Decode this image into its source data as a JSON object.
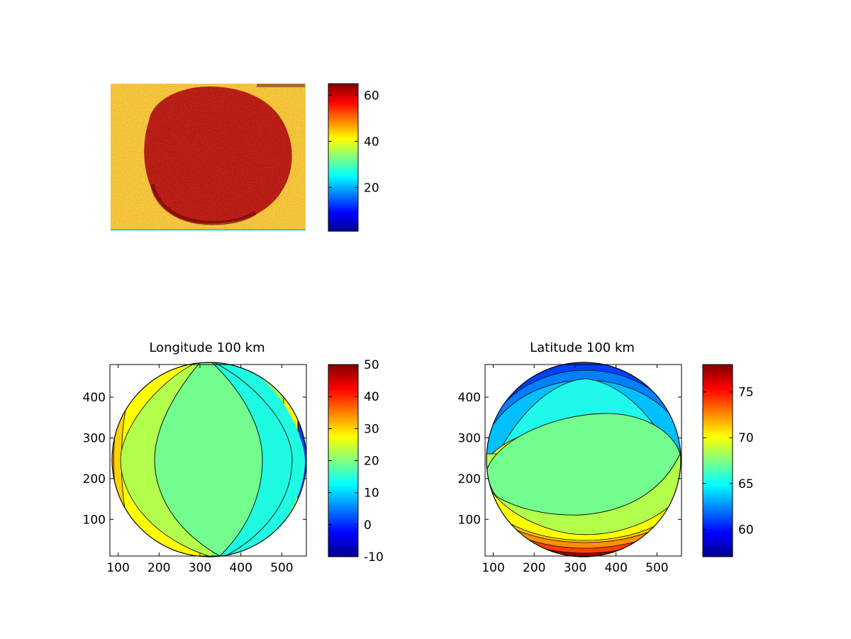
{
  "figure": {
    "colormap": "jet",
    "colormap_stops": [
      "#00008f",
      "#0000ff",
      "#0080ff",
      "#00ffff",
      "#80ff80",
      "#ffff00",
      "#ff8000",
      "#ff0000",
      "#800000"
    ]
  },
  "chart_data": [
    {
      "type": "heatmap",
      "title": "",
      "description_colors": {
        "background": "#f2d43a",
        "disk": "#a3140f"
      },
      "colorbar": {
        "range": [
          1,
          65
        ],
        "ticks": [
          20,
          40,
          60
        ]
      }
    },
    {
      "type": "contour",
      "title": "Longitude 100 km",
      "xlim": [
        80,
        560
      ],
      "ylim": [
        10,
        480
      ],
      "xticks": [
        100,
        200,
        300,
        400,
        500
      ],
      "yticks": [
        100,
        200,
        300,
        400
      ],
      "colorbar": {
        "range": [
          -10,
          50
        ],
        "ticks": [
          -10,
          0,
          10,
          20,
          30,
          40,
          50
        ]
      },
      "levels": [
        19.5,
        14.5,
        10,
        6,
        3,
        0,
        25,
        28,
        31,
        34,
        37
      ]
    },
    {
      "type": "contour",
      "title": "Latitude 100 km",
      "xlim": [
        80,
        560
      ],
      "ylim": [
        10,
        480
      ],
      "xticks": [
        100,
        200,
        300,
        400,
        500
      ],
      "yticks": [
        100,
        200,
        300,
        400
      ],
      "colorbar": {
        "range": [
          57,
          78
        ],
        "ticks": [
          60,
          65,
          70,
          75
        ]
      },
      "levels": [
        66.6,
        64.7,
        63,
        61.5,
        60,
        58.5,
        68,
        69.4,
        70.8,
        72.2,
        73.6,
        75
      ]
    }
  ]
}
